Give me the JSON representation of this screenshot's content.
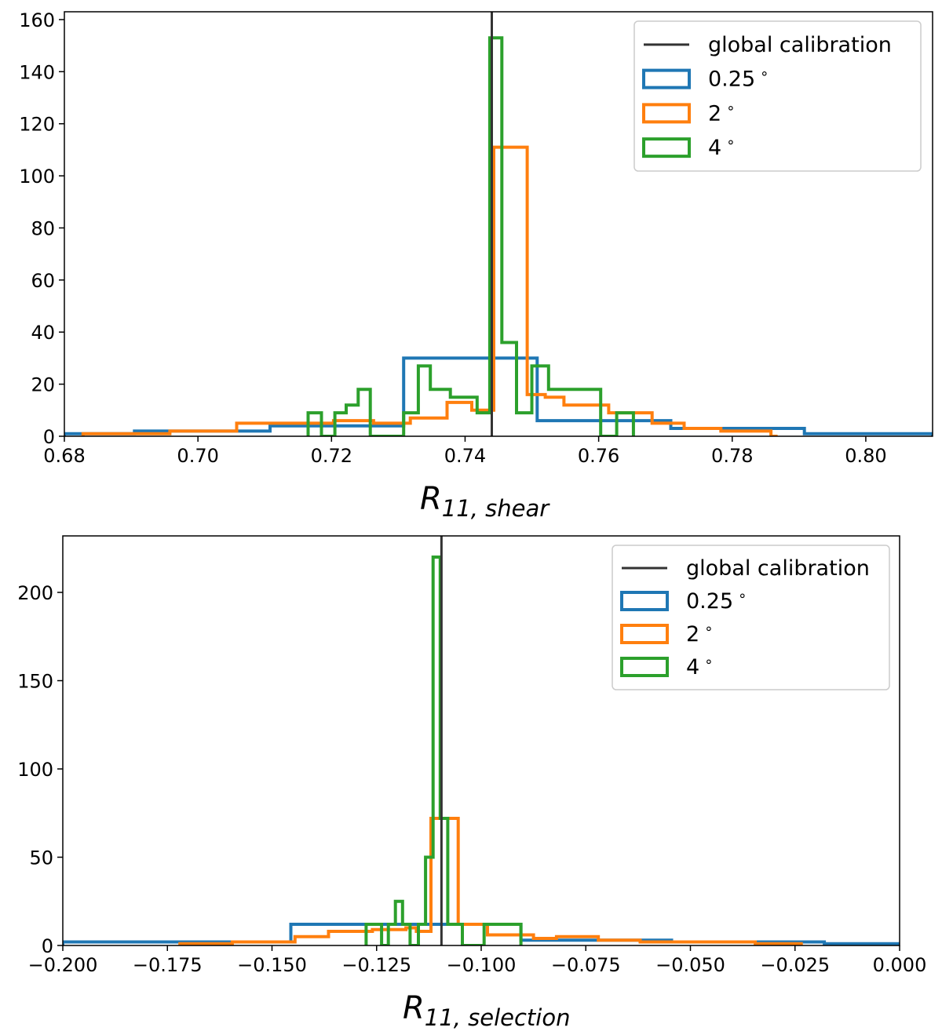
{
  "colors": {
    "global": "#333333",
    "s025": "#1f77b4",
    "s2": "#ff7f0e",
    "s4": "#2ca02c"
  },
  "chart_data": [
    {
      "type": "histogram",
      "xlabel": {
        "main": "R",
        "sub": "11, shear"
      },
      "xlim": [
        0.68,
        0.81
      ],
      "ylim": [
        0,
        163
      ],
      "xticks": [
        0.68,
        0.7,
        0.72,
        0.74,
        0.76,
        0.78,
        0.8
      ],
      "xtick_labels": [
        "0.68",
        "0.70",
        "0.72",
        "0.74",
        "0.76",
        "0.78",
        "0.80"
      ],
      "yticks": [
        0,
        20,
        40,
        60,
        80,
        100,
        120,
        140,
        160
      ],
      "ytick_labels": [
        "0",
        "20",
        "40",
        "60",
        "80",
        "100",
        "120",
        "140",
        "160"
      ],
      "vline": {
        "x": 0.744,
        "label": "global calibration"
      },
      "legend_position": "upper right",
      "series": [
        {
          "name": "0.25$^\\circ$",
          "label": "0.25",
          "color": "#1f77b4",
          "edges": [
            0.68,
            0.6905,
            0.7108,
            0.7308,
            0.7508,
            0.7708,
            0.7908,
            0.81
          ],
          "counts": [
            1,
            2,
            4,
            30,
            6,
            3,
            1
          ]
        },
        {
          "name": "2$^\\circ$",
          "label": "2",
          "color": "#ff7f0e",
          "edges": [
            0.6828,
            0.6958,
            0.7058,
            0.7203,
            0.7263,
            0.7318,
            0.7373,
            0.741,
            0.7443,
            0.7493,
            0.752,
            0.7548,
            0.7615,
            0.768,
            0.7728,
            0.7783,
            0.7858,
            0.7868
          ],
          "counts": [
            1,
            2,
            5,
            6,
            5,
            7,
            13,
            10,
            111,
            16,
            15,
            12,
            9,
            5,
            3,
            2,
            0
          ]
        },
        {
          "name": "4$^\\circ$",
          "label": "4",
          "color": "#2ca02c",
          "edges": [
            0.7165,
            0.7185,
            0.7195,
            0.7205,
            0.7222,
            0.724,
            0.7258,
            0.7308,
            0.733,
            0.7348,
            0.7378,
            0.7418,
            0.7437,
            0.7455,
            0.7477,
            0.75,
            0.7525,
            0.7558,
            0.7603,
            0.7627,
            0.7652
          ],
          "counts": [
            9,
            0,
            0,
            9,
            12,
            18,
            0,
            9,
            27,
            18,
            15,
            9,
            153,
            36,
            9,
            27,
            18,
            18,
            0,
            9
          ]
        }
      ]
    },
    {
      "type": "histogram",
      "xlabel": {
        "main": "R",
        "sub": "11, selection"
      },
      "xlim": [
        -0.2,
        0.0
      ],
      "ylim": [
        0,
        232
      ],
      "xticks": [
        -0.2,
        -0.175,
        -0.15,
        -0.125,
        -0.1,
        -0.075,
        -0.05,
        -0.025,
        0.0
      ],
      "xtick_labels": [
        "−0.200",
        "−0.175",
        "−0.150",
        "−0.125",
        "−0.100",
        "−0.075",
        "−0.050",
        "−0.025",
        "0.000"
      ],
      "yticks": [
        0,
        50,
        100,
        150,
        200
      ],
      "ytick_labels": [
        "0",
        "50",
        "100",
        "150",
        "200"
      ],
      "vline": {
        "x": -0.1095,
        "label": "global calibration"
      },
      "legend_position": "upper right",
      "series": [
        {
          "name": "0.25$^\\circ$",
          "label": "0.25",
          "color": "#1f77b4",
          "edges": [
            -0.2,
            -0.1455,
            -0.109,
            -0.0905,
            -0.073,
            -0.0545,
            -0.035,
            -0.018,
            0.0
          ],
          "counts": [
            2,
            12,
            12,
            3,
            3,
            2,
            2,
            1
          ]
        },
        {
          "name": "2$^\\circ$",
          "label": "2",
          "color": "#ff7f0e",
          "edges": [
            -0.172,
            -0.1595,
            -0.1445,
            -0.1365,
            -0.126,
            -0.118,
            -0.1155,
            -0.112,
            -0.11,
            -0.1055,
            -0.0985,
            -0.091,
            -0.0875,
            -0.082,
            -0.072,
            -0.062,
            -0.0525,
            -0.0425,
            -0.0345,
            -0.0235
          ],
          "counts": [
            1,
            2,
            5,
            8,
            9,
            10,
            8,
            72,
            72,
            12,
            6,
            6,
            4,
            5,
            3,
            2,
            2,
            2,
            1
          ]
        },
        {
          "name": "4$^\\circ$",
          "label": "4",
          "color": "#2ca02c",
          "edges": [
            -0.1275,
            -0.1238,
            -0.1222,
            -0.1205,
            -0.1188,
            -0.117,
            -0.115,
            -0.1133,
            -0.1115,
            -0.1098,
            -0.108,
            -0.1063,
            -0.1045,
            -0.101,
            -0.0993,
            -0.0975,
            -0.0905
          ],
          "counts": [
            12,
            0,
            12,
            25,
            12,
            0,
            12,
            50,
            220,
            72,
            12,
            12,
            0,
            0,
            12,
            12
          ]
        }
      ]
    }
  ]
}
